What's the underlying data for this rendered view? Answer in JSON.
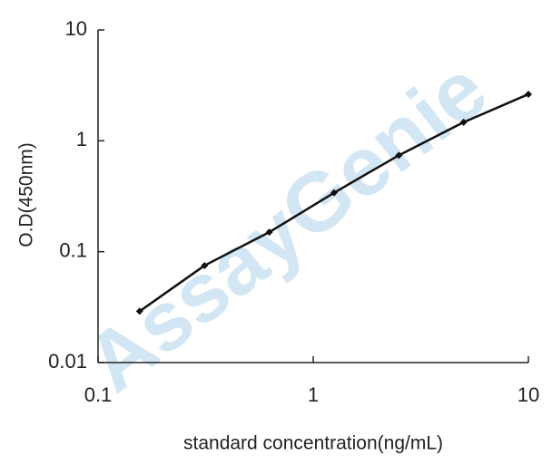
{
  "chart_data": {
    "type": "line",
    "x_label": "standard concentration(ng/mL)",
    "y_label": "O.D(450nm)",
    "watermark": "AssayGenie",
    "xscale": "log",
    "yscale": "log",
    "x": [
      0.156,
      0.3125,
      0.625,
      1.25,
      2.5,
      5,
      10
    ],
    "series": [
      {
        "color": "#111111",
        "values": [
          0.029,
          0.075,
          0.15,
          0.34,
          0.74,
          1.47,
          2.63
        ]
      }
    ],
    "xlim": [
      0.1,
      10
    ],
    "xticks": [
      0.1,
      1,
      10
    ],
    "ylim": [
      0.01,
      10
    ],
    "yticks": [
      0.01,
      0.1,
      1,
      10
    ]
  }
}
